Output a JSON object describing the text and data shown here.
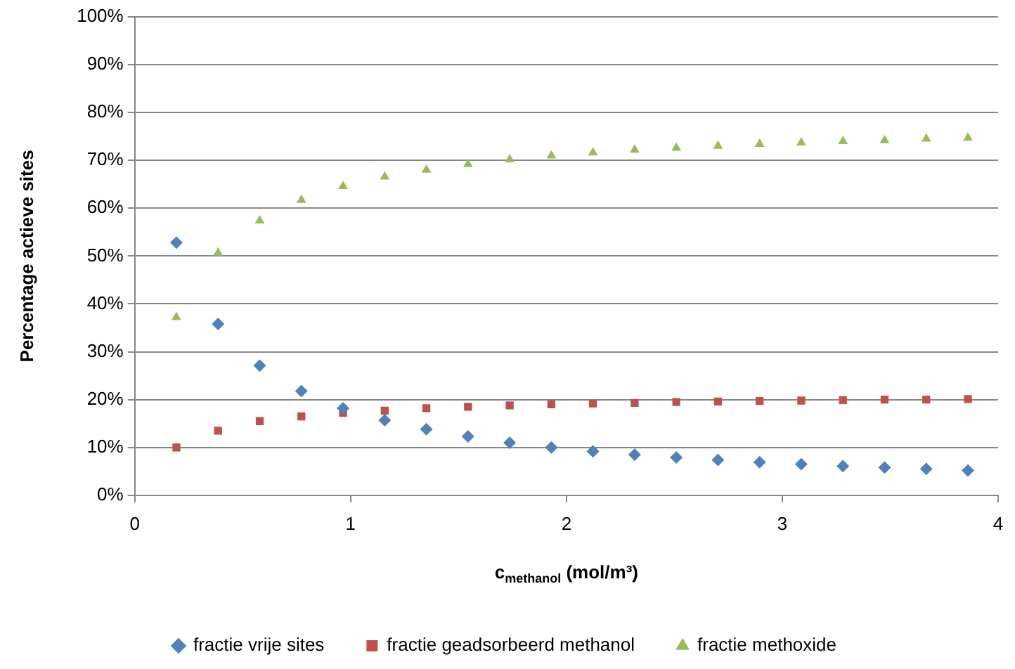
{
  "chart_data": {
    "type": "scatter",
    "xlabel": "c$_{methanol}$ (mol/m³)",
    "ylabel": "Percentage actieve sites",
    "x": [
      0.193,
      0.386,
      0.579,
      0.772,
      0.965,
      1.158,
      1.351,
      1.544,
      1.737,
      1.93,
      2.123,
      2.316,
      2.509,
      2.702,
      2.895,
      3.088,
      3.281,
      3.474,
      3.667,
      3.86
    ],
    "series": [
      {
        "name": "fractie vrije sites",
        "color": "#4f81bd",
        "marker": "diamond",
        "values": [
          52.8,
          35.8,
          27.1,
          21.8,
          18.2,
          15.7,
          13.8,
          12.3,
          11.0,
          10.0,
          9.2,
          8.5,
          7.9,
          7.4,
          6.9,
          6.5,
          6.1,
          5.8,
          5.5,
          5.2
        ]
      },
      {
        "name": "fractie geadsorbeerd methanol",
        "color": "#c0504d",
        "marker": "square",
        "values": [
          10.0,
          13.5,
          15.5,
          16.5,
          17.2,
          17.7,
          18.2,
          18.5,
          18.8,
          19.0,
          19.2,
          19.3,
          19.5,
          19.6,
          19.7,
          19.8,
          19.9,
          20.0,
          20.0,
          20.1
        ]
      },
      {
        "name": "fractie methoxide",
        "color": "#9bbb59",
        "marker": "triangle",
        "values": [
          37.2,
          50.7,
          57.4,
          61.7,
          64.6,
          66.6,
          68.0,
          69.2,
          70.2,
          71.0,
          71.6,
          72.2,
          72.6,
          73.0,
          73.4,
          73.7,
          74.0,
          74.2,
          74.5,
          74.7
        ]
      }
    ],
    "xlim": [
      0,
      4
    ],
    "xticks": [
      0,
      1,
      2,
      3,
      4
    ],
    "ylim": [
      0,
      100
    ],
    "yticks": [
      {
        "value": 0,
        "label": "0%"
      },
      {
        "value": 10,
        "label": "10%"
      },
      {
        "value": 20,
        "label": "20%"
      },
      {
        "value": 30,
        "label": "30%"
      },
      {
        "value": 40,
        "label": "40%"
      },
      {
        "value": 50,
        "label": "50%"
      },
      {
        "value": 60,
        "label": "60%"
      },
      {
        "value": 70,
        "label": "70%"
      },
      {
        "value": 80,
        "label": "80%"
      },
      {
        "value": 90,
        "label": "90%"
      },
      {
        "value": 100,
        "label": "100%"
      }
    ],
    "grid": "y",
    "legend": "bottom"
  }
}
